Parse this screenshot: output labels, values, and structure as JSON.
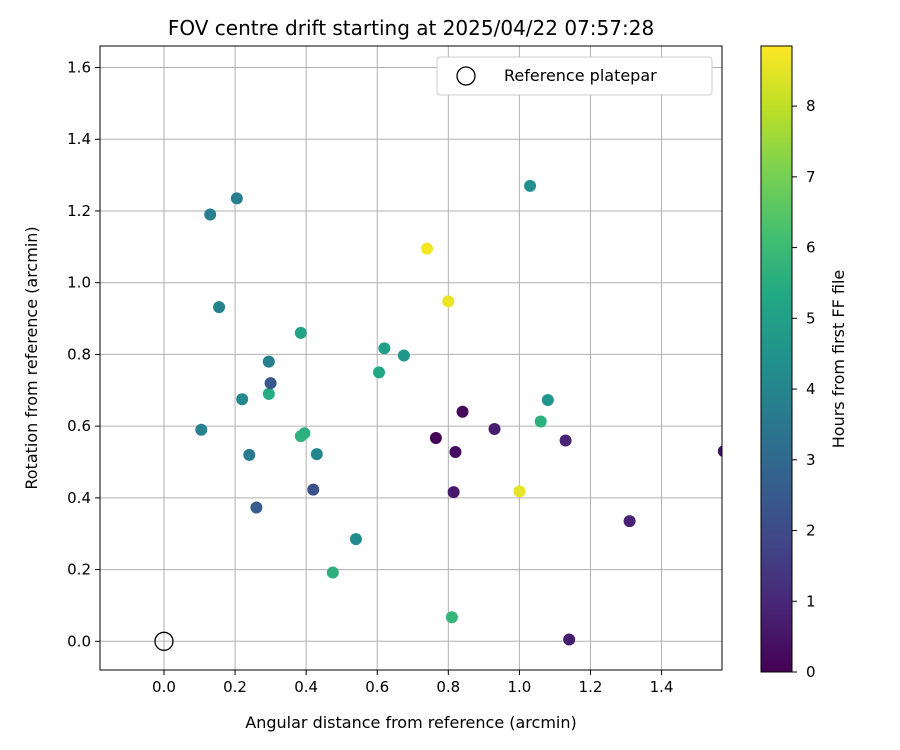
{
  "chart_data": {
    "type": "scatter",
    "title": "FOV centre drift starting at 2025/04/22 07:57:28",
    "xlabel": "Angular distance from reference (arcmin)",
    "ylabel": "Rotation from reference (arcmin)",
    "xlim": [
      -0.18,
      1.57
    ],
    "ylim": [
      -0.08,
      1.66
    ],
    "x_ticks": [
      "0.0",
      "0.2",
      "0.4",
      "0.6",
      "0.8",
      "1.0",
      "1.2",
      "1.4"
    ],
    "y_ticks": [
      "0.0",
      "0.2",
      "0.4",
      "0.6",
      "0.8",
      "1.0",
      "1.2",
      "1.4",
      "1.6"
    ],
    "grid": true,
    "legend": {
      "position": "top-right",
      "label": "Reference platepar"
    },
    "reference_point": {
      "x": 0.0,
      "y": 0.0
    },
    "colorbar": {
      "label": "Hours from first FF file",
      "colormap": "viridis",
      "range": [
        0,
        8.85
      ],
      "ticks": [
        "0",
        "1",
        "2",
        "3",
        "4",
        "5",
        "6",
        "7",
        "8"
      ]
    },
    "points": [
      {
        "x": 0.74,
        "y": 1.095,
        "hours": 8.7
      },
      {
        "x": 0.8,
        "y": 0.948,
        "hours": 8.6
      },
      {
        "x": 1.0,
        "y": 0.418,
        "hours": 8.5
      },
      {
        "x": 1.03,
        "y": 1.27,
        "hours": 4.4
      },
      {
        "x": 1.08,
        "y": 0.673,
        "hours": 4.6
      },
      {
        "x": 1.06,
        "y": 0.613,
        "hours": 5.6
      },
      {
        "x": 0.84,
        "y": 0.64,
        "hours": 0.2
      },
      {
        "x": 0.765,
        "y": 0.567,
        "hours": 0.1
      },
      {
        "x": 0.82,
        "y": 0.528,
        "hours": 0.3
      },
      {
        "x": 0.93,
        "y": 0.592,
        "hours": 0.7
      },
      {
        "x": 0.815,
        "y": 0.416,
        "hours": 0.6
      },
      {
        "x": 1.13,
        "y": 0.56,
        "hours": 0.9
      },
      {
        "x": 1.31,
        "y": 0.335,
        "hours": 0.8
      },
      {
        "x": 1.14,
        "y": 0.005,
        "hours": 0.7
      },
      {
        "x": 1.575,
        "y": 0.53,
        "hours": 0.5
      },
      {
        "x": 0.81,
        "y": 0.067,
        "hours": 5.8
      },
      {
        "x": 0.475,
        "y": 0.192,
        "hours": 5.6
      },
      {
        "x": 0.54,
        "y": 0.285,
        "hours": 4.2
      },
      {
        "x": 0.605,
        "y": 0.75,
        "hours": 5.3
      },
      {
        "x": 0.62,
        "y": 0.817,
        "hours": 5.0
      },
      {
        "x": 0.675,
        "y": 0.797,
        "hours": 4.6
      },
      {
        "x": 0.385,
        "y": 0.86,
        "hours": 5.1
      },
      {
        "x": 0.385,
        "y": 0.572,
        "hours": 5.7
      },
      {
        "x": 0.395,
        "y": 0.58,
        "hours": 5.6
      },
      {
        "x": 0.43,
        "y": 0.522,
        "hours": 4.0
      },
      {
        "x": 0.42,
        "y": 0.423,
        "hours": 2.2
      },
      {
        "x": 0.295,
        "y": 0.69,
        "hours": 5.4
      },
      {
        "x": 0.3,
        "y": 0.72,
        "hours": 2.4
      },
      {
        "x": 0.295,
        "y": 0.78,
        "hours": 3.8
      },
      {
        "x": 0.26,
        "y": 0.373,
        "hours": 2.6
      },
      {
        "x": 0.24,
        "y": 0.52,
        "hours": 3.6
      },
      {
        "x": 0.22,
        "y": 0.675,
        "hours": 4.1
      },
      {
        "x": 0.205,
        "y": 1.235,
        "hours": 3.7
      },
      {
        "x": 0.13,
        "y": 1.19,
        "hours": 3.7
      },
      {
        "x": 0.155,
        "y": 0.932,
        "hours": 3.9
      },
      {
        "x": 0.105,
        "y": 0.59,
        "hours": 3.9
      }
    ]
  }
}
